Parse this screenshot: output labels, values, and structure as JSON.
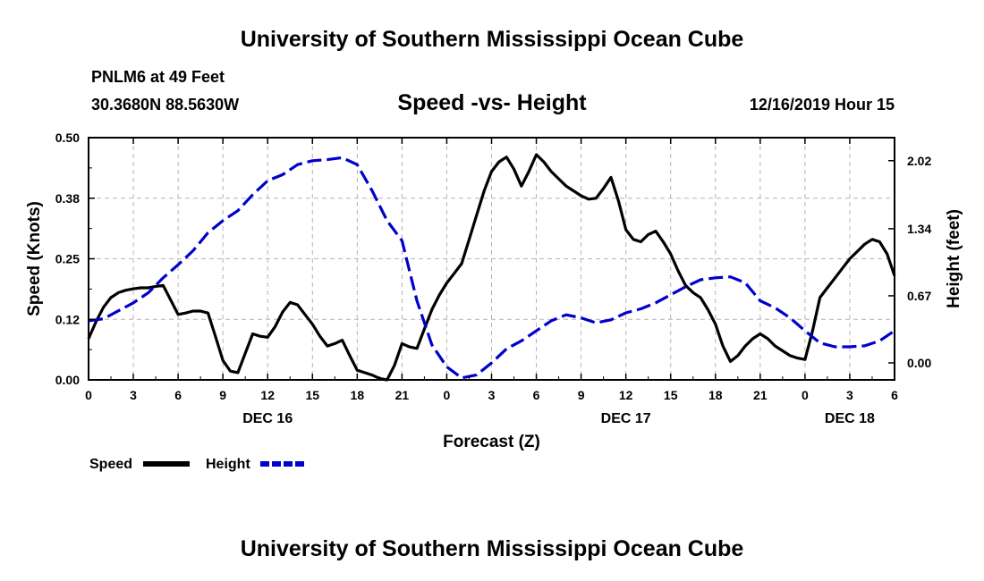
{
  "header": {
    "title_top": "University of Southern Mississippi Ocean Cube",
    "title_bottom": "University of Southern Mississippi Ocean Cube",
    "station": "PNLM6 at 49 Feet",
    "coords": "30.3680N 88.5630W",
    "datetime": "12/16/2019 Hour 15"
  },
  "colors": {
    "speed": "#000000",
    "height": "#0000cc",
    "grid": "#b4b4b4"
  },
  "chart_data": {
    "type": "line",
    "title": "Speed -vs- Height",
    "xlabel": "Forecast (Z)",
    "ylabel": "Speed (Knots)",
    "ylabel_right": "Height (feet)",
    "xlim": [
      0,
      54
    ],
    "ylim": [
      0,
      0.5
    ],
    "ylim_right": [
      -0.17,
      2.25
    ],
    "grid": true,
    "legend_position": "bottom-left",
    "x_ticks": [
      0,
      3,
      6,
      9,
      12,
      15,
      18,
      21,
      24,
      27,
      30,
      33,
      36,
      39,
      42,
      45,
      48,
      51,
      54
    ],
    "x_tick_labels": [
      "0",
      "3",
      "6",
      "9",
      "12",
      "15",
      "18",
      "21",
      "0",
      "3",
      "6",
      "9",
      "12",
      "15",
      "18",
      "21",
      "0",
      "3",
      "6"
    ],
    "y_ticks": [
      0,
      0.125,
      0.25,
      0.375,
      0.5
    ],
    "y_tick_labels": [
      "0.00",
      "0.12",
      "0.25",
      "0.38",
      "0.50"
    ],
    "y_right_ticks": [
      0.0,
      0.67,
      1.34,
      2.02
    ],
    "y_right_tick_labels": [
      "0.00",
      "0.67",
      "1.34",
      "2.02"
    ],
    "day_labels": [
      {
        "x": 12,
        "label": "DEC 16"
      },
      {
        "x": 36,
        "label": "DEC 17"
      },
      {
        "x": 51,
        "label": "DEC 18"
      }
    ],
    "series": [
      {
        "name": "Speed",
        "axis": "left",
        "style": "solid",
        "x": [
          0,
          0.5,
          1,
          1.5,
          2,
          2.5,
          3,
          3.5,
          4,
          4.5,
          5,
          5.5,
          6,
          6.5,
          7,
          7.5,
          8,
          8.5,
          9,
          9.5,
          10,
          10.5,
          11,
          11.5,
          12,
          12.5,
          13,
          13.5,
          14,
          14.5,
          15,
          15.5,
          16,
          16.5,
          17,
          17.5,
          18,
          18.5,
          19,
          19.5,
          20,
          20.5,
          21,
          21.5,
          22,
          22.5,
          23,
          23.5,
          24,
          24.5,
          25,
          25.5,
          26,
          26.5,
          27,
          27.5,
          28,
          28.5,
          29,
          29.5,
          30,
          30.5,
          31,
          31.5,
          32,
          32.5,
          33,
          33.5,
          34,
          34.5,
          35,
          35.5,
          36,
          36.5,
          37,
          37.5,
          38,
          38.5,
          39,
          39.5,
          40,
          40.5,
          41,
          41.5,
          42,
          42.5,
          43,
          43.5,
          44,
          44.5,
          45,
          45.5,
          46,
          46.5,
          47,
          47.5,
          48,
          48.5,
          49,
          49.5,
          50,
          50.5,
          51,
          51.5,
          52,
          52.5,
          53,
          53.5,
          54
        ],
        "values": [
          0.085,
          0.12,
          0.15,
          0.17,
          0.18,
          0.185,
          0.188,
          0.19,
          0.19,
          0.193,
          0.195,
          0.165,
          0.135,
          0.138,
          0.142,
          0.142,
          0.138,
          0.09,
          0.04,
          0.018,
          0.015,
          0.055,
          0.095,
          0.09,
          0.088,
          0.11,
          0.14,
          0.16,
          0.155,
          0.135,
          0.115,
          0.09,
          0.07,
          0.075,
          0.082,
          0.05,
          0.02,
          0.015,
          0.01,
          0.003,
          0.0,
          0.03,
          0.075,
          0.068,
          0.065,
          0.105,
          0.145,
          0.175,
          0.2,
          0.22,
          0.24,
          0.29,
          0.34,
          0.39,
          0.43,
          0.45,
          0.46,
          0.435,
          0.4,
          0.43,
          0.465,
          0.45,
          0.43,
          0.415,
          0.4,
          0.39,
          0.38,
          0.373,
          0.375,
          0.395,
          0.418,
          0.37,
          0.31,
          0.29,
          0.285,
          0.3,
          0.307,
          0.285,
          0.26,
          0.225,
          0.195,
          0.18,
          0.17,
          0.145,
          0.115,
          0.07,
          0.038,
          0.05,
          0.07,
          0.085,
          0.095,
          0.085,
          0.07,
          0.06,
          0.05,
          0.045,
          0.042,
          0.1,
          0.17,
          0.19,
          0.21,
          0.23,
          0.25,
          0.265,
          0.28,
          0.29,
          0.285,
          0.26,
          0.215
        ]
      },
      {
        "name": "Height",
        "axis": "right",
        "style": "dashed",
        "x": [
          0,
          1,
          2,
          3,
          4,
          5,
          6,
          7,
          8,
          9,
          10,
          11,
          12,
          13,
          14,
          15,
          16,
          17,
          18,
          19,
          20,
          21,
          22,
          23,
          24,
          25,
          26,
          27,
          28,
          29,
          30,
          31,
          32,
          33,
          34,
          35,
          36,
          37,
          38,
          39,
          40,
          41,
          42,
          43,
          44,
          45,
          46,
          47,
          48,
          49,
          50,
          51,
          52,
          53,
          54
        ],
        "values": [
          0.42,
          0.44,
          0.52,
          0.6,
          0.7,
          0.85,
          0.98,
          1.12,
          1.3,
          1.42,
          1.52,
          1.68,
          1.82,
          1.88,
          1.98,
          2.02,
          2.03,
          2.05,
          1.98,
          1.72,
          1.42,
          1.22,
          0.62,
          0.18,
          -0.04,
          -0.15,
          -0.12,
          0.0,
          0.14,
          0.22,
          0.32,
          0.42,
          0.48,
          0.45,
          0.4,
          0.43,
          0.5,
          0.54,
          0.6,
          0.68,
          0.76,
          0.83,
          0.85,
          0.86,
          0.8,
          0.62,
          0.55,
          0.45,
          0.32,
          0.2,
          0.16,
          0.16,
          0.17,
          0.22,
          0.32
        ]
      }
    ]
  }
}
